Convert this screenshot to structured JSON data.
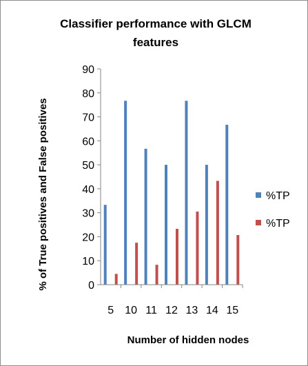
{
  "chart_data": {
    "type": "bar",
    "title": "Classifier  performance with GLCM features",
    "title_lines": [
      "Classifier  performance with GLCM",
      "features"
    ],
    "xlabel": "Number of hidden nodes",
    "ylabel": "% of True positives and False positives",
    "categories": [
      "5",
      "10",
      "11",
      "12",
      "13",
      "14",
      "15"
    ],
    "ylim": [
      0,
      90
    ],
    "yticks": [
      0,
      10,
      20,
      30,
      40,
      50,
      60,
      70,
      80,
      90
    ],
    "grid": false,
    "legend_position": "right",
    "series": [
      {
        "name": "%TP",
        "color": "#4f81bd",
        "values": [
          33.3,
          76.7,
          56.7,
          50.0,
          76.7,
          50.0,
          66.7
        ]
      },
      {
        "name": "%TP",
        "color": "#c0504d",
        "values": [
          4.5,
          17.5,
          8.3,
          23.3,
          30.5,
          43.3,
          20.7
        ]
      }
    ]
  }
}
